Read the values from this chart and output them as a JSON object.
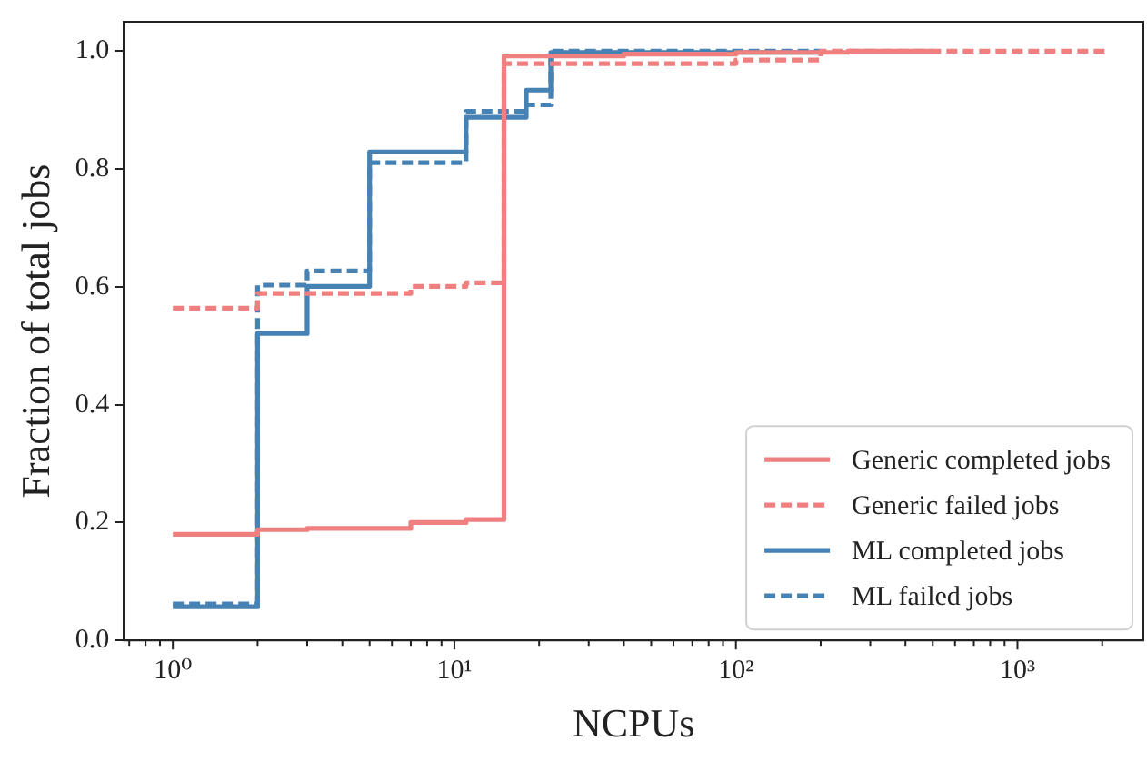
{
  "chart_data": {
    "type": "step",
    "xlabel": "NCPUs",
    "ylabel": "Fraction of total jobs",
    "log": "x",
    "xlim": [
      0.67,
      2800
    ],
    "ylim": [
      0,
      1.05
    ],
    "xticks": [
      {
        "value": 0.7,
        "label": null
      },
      {
        "value": 0.8,
        "label": null
      },
      {
        "value": 0.9,
        "label": null
      },
      {
        "value": 1,
        "label": "10⁰"
      },
      {
        "value": 2,
        "label": null
      },
      {
        "value": 3,
        "label": null
      },
      {
        "value": 4,
        "label": null
      },
      {
        "value": 5,
        "label": null
      },
      {
        "value": 6,
        "label": null
      },
      {
        "value": 7,
        "label": null
      },
      {
        "value": 8,
        "label": null
      },
      {
        "value": 9,
        "label": null
      },
      {
        "value": 10,
        "label": "10¹"
      },
      {
        "value": 20,
        "label": null
      },
      {
        "value": 30,
        "label": null
      },
      {
        "value": 40,
        "label": null
      },
      {
        "value": 50,
        "label": null
      },
      {
        "value": 60,
        "label": null
      },
      {
        "value": 70,
        "label": null
      },
      {
        "value": 80,
        "label": null
      },
      {
        "value": 90,
        "label": null
      },
      {
        "value": 100,
        "label": "10²"
      },
      {
        "value": 200,
        "label": null
      },
      {
        "value": 300,
        "label": null
      },
      {
        "value": 400,
        "label": null
      },
      {
        "value": 500,
        "label": null
      },
      {
        "value": 600,
        "label": null
      },
      {
        "value": 700,
        "label": null
      },
      {
        "value": 800,
        "label": null
      },
      {
        "value": 900,
        "label": null
      },
      {
        "value": 1000,
        "label": "10³"
      },
      {
        "value": 2000,
        "label": null
      }
    ],
    "yticks": [
      {
        "value": 0,
        "label": "0.0"
      },
      0.2,
      0.4,
      0.6,
      0.8,
      {
        "value": 1,
        "label": "1.0"
      }
    ],
    "legend": "bottom right",
    "grid": false,
    "series": [
      {
        "name": "Generic completed jobs",
        "color": "#f08080",
        "line_style": "solid",
        "x": [
          1,
          2,
          3,
          7,
          11,
          15,
          40,
          100,
          250,
          500
        ],
        "values": [
          0.18,
          0.188,
          0.19,
          0.2,
          0.205,
          0.992,
          0.995,
          0.998,
          1.0,
          1.0
        ]
      },
      {
        "name": "Generic failed jobs",
        "color": "#f08080",
        "line_style": "dashed",
        "x": [
          1,
          2,
          7,
          11,
          15,
          100,
          200,
          2100
        ],
        "values": [
          0.564,
          0.589,
          0.601,
          0.607,
          0.979,
          0.985,
          1.0,
          1.0
        ]
      },
      {
        "name": "ML completed jobs",
        "color": "#4682b4",
        "line_style": "solid",
        "x": [
          1,
          2,
          3,
          5,
          11,
          18,
          22,
          200
        ],
        "values": [
          0.057,
          0.521,
          0.601,
          0.829,
          0.888,
          0.934,
          0.998,
          1.0
        ]
      },
      {
        "name": "ML failed jobs",
        "color": "#4682b4",
        "line_style": "dashed",
        "x": [
          1,
          2,
          3,
          5,
          11,
          18,
          22,
          200
        ],
        "values": [
          0.062,
          0.603,
          0.627,
          0.811,
          0.898,
          0.909,
          1.0,
          1.0
        ]
      }
    ]
  }
}
